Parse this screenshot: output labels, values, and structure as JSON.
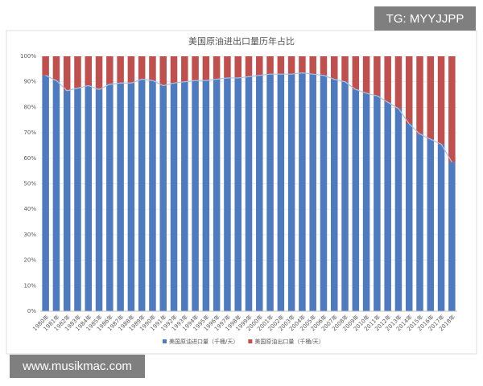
{
  "chart_data": {
    "type": "stacked_bar",
    "title": "美国原油进出口量历年占比",
    "categories": [
      "1980年",
      "1981年",
      "1982年",
      "1983年",
      "1984年",
      "1985年",
      "1986年",
      "1987年",
      "1988年",
      "1989年",
      "1990年",
      "1991年",
      "1992年",
      "1993年",
      "1994年",
      "1995年",
      "1996年",
      "1997年",
      "1998年",
      "1999年",
      "2000年",
      "2001年",
      "2002年",
      "2003年",
      "2004年",
      "2005年",
      "2006年",
      "2007年",
      "2008年",
      "2009年",
      "2010年",
      "2011年",
      "2012年",
      "2013年",
      "2014年",
      "2015年",
      "2016年",
      "2017年",
      "2018年"
    ],
    "series": [
      {
        "name": "美国原油进口量（千桶/天）",
        "color": "#4e7ac0",
        "values": [
          92.5,
          90.5,
          86.5,
          87.5,
          88.5,
          87,
          89,
          89.5,
          89.5,
          91,
          90.5,
          88.5,
          89.5,
          90,
          90.5,
          90.5,
          91,
          91.5,
          91.5,
          92,
          92.5,
          93,
          93,
          93,
          93.5,
          93,
          92.5,
          91,
          90,
          87,
          85.5,
          84.5,
          82,
          79.5,
          73.5,
          69.5,
          67.5,
          65.5,
          58.5
        ]
      },
      {
        "name": "美国原油出口量（千桶/天）",
        "color": "#c0504d",
        "values": [
          7.5,
          9.5,
          13.5,
          12.5,
          11.5,
          13,
          11,
          10.5,
          10.5,
          9,
          9.5,
          11.5,
          10.5,
          10,
          9.5,
          9.5,
          9,
          8.5,
          8.5,
          8,
          7.5,
          7,
          7,
          7,
          6.5,
          7,
          7.5,
          9,
          10,
          13,
          14.5,
          15.5,
          18,
          20.5,
          26.5,
          30.5,
          32.5,
          34.5,
          41.5
        ]
      }
    ],
    "ylim": [
      0,
      100
    ],
    "yticks": [
      {
        "value": 0,
        "label": "0%"
      },
      {
        "value": 10,
        "label": "10%"
      },
      {
        "value": 20,
        "label": "20%"
      },
      {
        "value": 30,
        "label": "30%"
      },
      {
        "value": 40,
        "label": "40%"
      },
      {
        "value": 50,
        "label": "50%"
      },
      {
        "value": 60,
        "label": "60%"
      },
      {
        "value": 70,
        "label": "70%"
      },
      {
        "value": 80,
        "label": "80%"
      },
      {
        "value": 90,
        "label": "90%"
      },
      {
        "value": 100,
        "label": "100%"
      }
    ],
    "grid": true,
    "legend": "bottom"
  },
  "watermarks": [
    "TG: MYYJJPP",
    "www.musikmac.com"
  ]
}
